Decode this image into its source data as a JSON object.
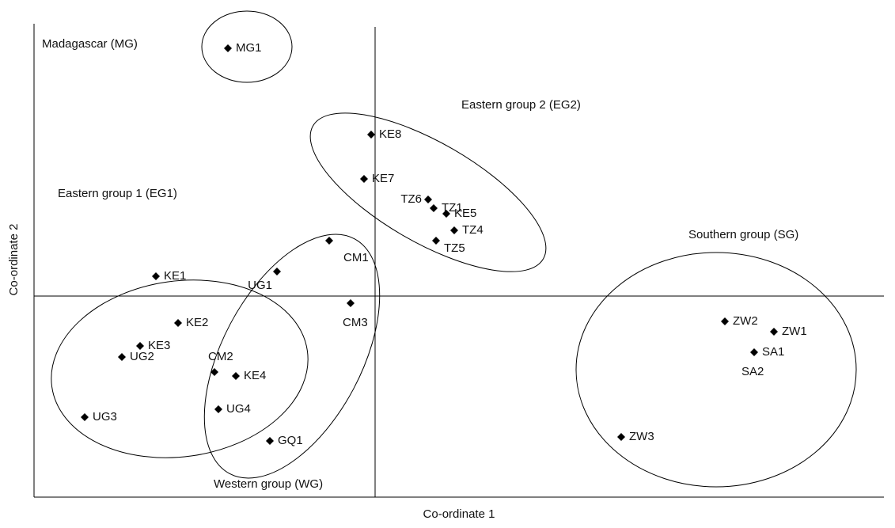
{
  "chart_data": {
    "type": "scatter",
    "x_label": "Co-ordinate 1",
    "y_label": "Co-ordinate 2",
    "xlim": [
      -4.31,
      6.43
    ],
    "ylim": [
      -2.54,
      3.44
    ],
    "color": "#000000",
    "labels": [
      "MG1",
      "KE8",
      "KE7",
      "TZ6",
      "TZ1",
      "KE5",
      "TZ4",
      "TZ5",
      "CM1",
      "KE1",
      "UG1",
      "CM3",
      "KE2",
      "KE3",
      "UG2",
      "CM2",
      "KE4",
      "UG4",
      "UG3",
      "GQ1",
      "ZW2",
      "ZW1",
      "SA1",
      "SA2",
      "ZW3"
    ],
    "x": [
      -1.86,
      -0.05,
      -0.14,
      0.67,
      0.74,
      0.9,
      1.0,
      0.77,
      -0.58,
      -2.77,
      -1.24,
      -0.31,
      -2.49,
      -2.97,
      -3.2,
      -2.03,
      -1.76,
      -1.98,
      -3.67,
      -1.33,
      4.42,
      5.04,
      4.79,
      4.79,
      3.11
    ],
    "values": [
      3.13,
      2.04,
      1.48,
      1.22,
      1.11,
      1.04,
      0.83,
      0.7,
      0.7,
      0.25,
      0.31,
      -0.09,
      -0.34,
      -0.63,
      -0.77,
      -0.96,
      -1.01,
      -1.43,
      -1.53,
      -1.83,
      -0.32,
      -0.45,
      -0.71,
      -0.71,
      -1.78
    ],
    "annotations": [
      "Madagascar (MG)",
      "Eastern group 2 (EG2)",
      "Eastern group 1 (EG1)",
      "Southern group (SG)",
      "Western group (WG)"
    ]
  }
}
